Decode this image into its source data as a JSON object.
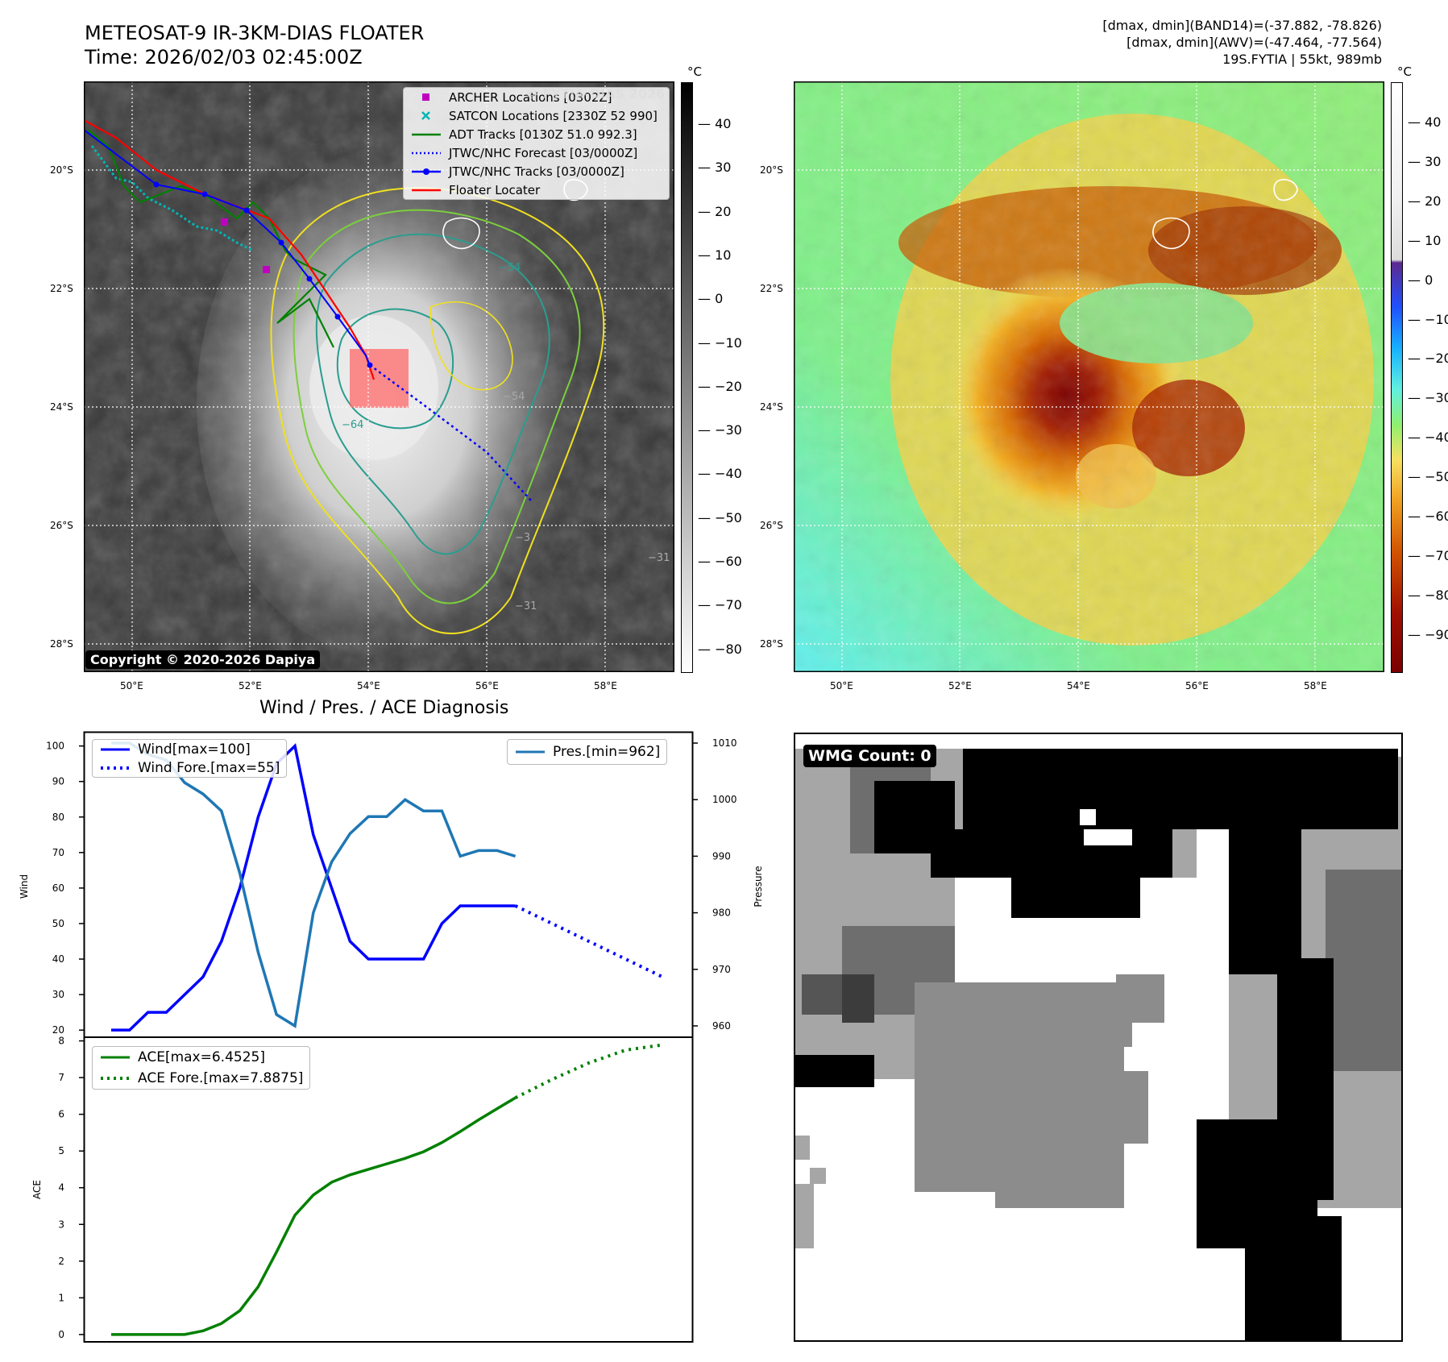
{
  "header": {
    "title_line1": "METEOSAT-9 IR-3KM-DIAS FLOATER",
    "title_line2": "Time: 2026/02/03 02:45:00Z",
    "info_line1": "[dmax, dmin](BAND14)=(-37.882, -78.826)",
    "info_line2": "[dmax, dmin](AWV)=(-47.464, -77.564)",
    "info_line3": "19S.FYTIA | 55kt, 989mb"
  },
  "map_axes": {
    "lat_labels": [
      "20°S",
      "22°S",
      "24°S",
      "26°S",
      "28°S"
    ],
    "lon_labels": [
      "50°E",
      "52°E",
      "54°E",
      "56°E",
      "58°E"
    ]
  },
  "ir_panel": {
    "copyright": "Copyright © 2020-2026 Dapiya",
    "watermark": "© FYTIA-DIAS 2026",
    "colorbar_unit": "°C",
    "colorbar_ticks": [
      "40",
      "30",
      "20",
      "10",
      "0",
      "−10",
      "−20",
      "−30",
      "−40",
      "−50",
      "−60",
      "−70",
      "−80"
    ],
    "contour_labels": [
      "−54",
      "−64",
      "−3",
      "−54",
      "−31",
      "−31"
    ],
    "legend": [
      {
        "label": "ARCHER Locations [0302Z]",
        "color": "#c000c0",
        "kind": "square"
      },
      {
        "label": "SATCON Locations [2330Z 52 990]",
        "color": "#00b5b5",
        "kind": "x"
      },
      {
        "label": "ADT Tracks [0130Z 51.0 992.3]",
        "color": "#008000",
        "kind": "line"
      },
      {
        "label": "JTWC/NHC Forecast [03/0000Z]",
        "color": "#0000ff",
        "kind": "dotted"
      },
      {
        "label": "JTWC/NHC Tracks [03/0000Z]",
        "color": "#0000ff",
        "kind": "line-dot"
      },
      {
        "label": "Floater Locater",
        "color": "#ff0000",
        "kind": "line"
      }
    ]
  },
  "wv_panel": {
    "colorbar_unit": "°C",
    "colorbar_ticks": [
      "40",
      "30",
      "20",
      "10",
      "0",
      "−10",
      "−20",
      "−30",
      "−40",
      "−50",
      "−60",
      "−70",
      "−80",
      "−90"
    ]
  },
  "wmg_panel": {
    "badge": "WMG Count: 0"
  },
  "chart_data": [
    {
      "type": "line",
      "title": "Wind / Pres. / ACE Diagnosis",
      "ylabel": "Wind",
      "ylabel_right": "Pressure",
      "ylim": [
        18,
        104
      ],
      "ylim_right": [
        958,
        1012
      ],
      "yticks": [
        20,
        30,
        40,
        50,
        60,
        70,
        80,
        90,
        100
      ],
      "yticks_right": [
        960,
        970,
        980,
        990,
        1000,
        1010
      ],
      "x_range": [
        0,
        30
      ],
      "series": [
        {
          "name": "Wind[max=100]",
          "color": "#0000ff",
          "style": "solid",
          "axis": "left",
          "x": [
            0,
            1,
            2,
            3,
            4,
            5,
            6,
            7,
            8,
            9,
            10,
            11,
            12,
            13,
            14,
            15,
            16,
            17,
            18,
            19,
            20,
            21,
            22
          ],
          "values": [
            20,
            20,
            25,
            25,
            30,
            35,
            45,
            60,
            80,
            95,
            100,
            75,
            60,
            45,
            40,
            40,
            40,
            40,
            50,
            55,
            55,
            55,
            55
          ]
        },
        {
          "name": "Wind Fore.[max=55]",
          "color": "#0000ff",
          "style": "dotted",
          "axis": "left",
          "x": [
            22,
            26,
            30
          ],
          "values": [
            55,
            45,
            35
          ]
        },
        {
          "name": "Pres.[min=962]",
          "color": "#1f77b4",
          "style": "solid",
          "axis": "right",
          "x": [
            0,
            1,
            2,
            3,
            4,
            5,
            6,
            7,
            8,
            9,
            10,
            11,
            12,
            13,
            14,
            15,
            16,
            17,
            18,
            19,
            20,
            21,
            22
          ],
          "values": [
            1010,
            1010,
            1008,
            1007,
            1003,
            1001,
            998,
            987,
            973,
            962,
            960,
            980,
            989,
            994,
            997,
            997,
            1000,
            998,
            998,
            990,
            991,
            991,
            990
          ]
        }
      ]
    },
    {
      "type": "line",
      "ylabel": "ACE",
      "ylim": [
        -0.2,
        8.1
      ],
      "yticks": [
        0,
        1,
        2,
        3,
        4,
        5,
        6,
        7,
        8
      ],
      "x_range": [
        0,
        30
      ],
      "series": [
        {
          "name": "ACE[max=6.4525]",
          "color": "#008000",
          "style": "solid",
          "x": [
            0,
            1,
            2,
            3,
            4,
            5,
            6,
            7,
            8,
            9,
            10,
            11,
            12,
            13,
            14,
            15,
            16,
            17,
            18,
            19,
            20,
            21,
            22
          ],
          "values": [
            0,
            0,
            0,
            0,
            0,
            0.1,
            0.3,
            0.65,
            1.3,
            2.25,
            3.25,
            3.8,
            4.15,
            4.35,
            4.5,
            4.65,
            4.8,
            4.98,
            5.23,
            5.53,
            5.85,
            6.15,
            6.45
          ]
        },
        {
          "name": "ACE Fore.[max=7.8875]",
          "color": "#008000",
          "style": "dotted",
          "x": [
            22,
            24,
            26,
            28,
            30
          ],
          "values": [
            6.45,
            6.95,
            7.4,
            7.75,
            7.89
          ]
        }
      ]
    }
  ]
}
